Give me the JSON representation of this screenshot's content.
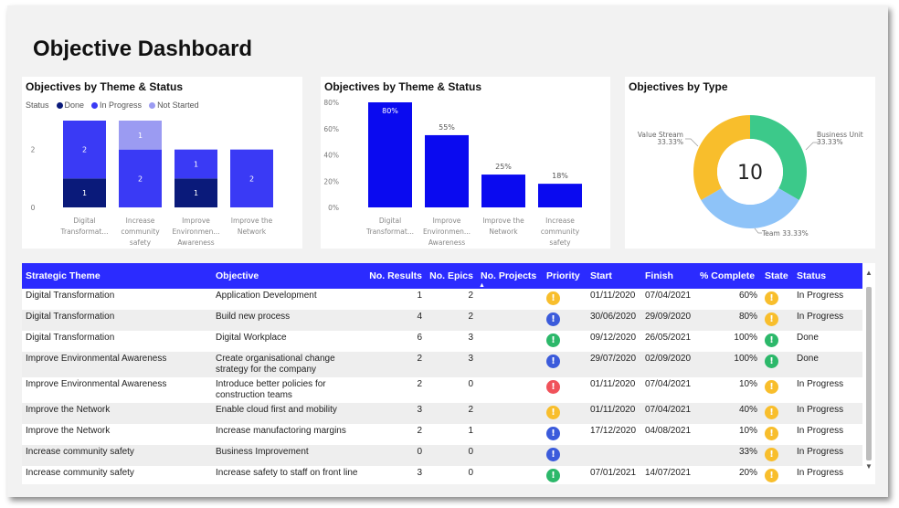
{
  "page_title": "Objective Dashboard",
  "charts": {
    "stacked": {
      "title": "Objectives by Theme & Status"
    },
    "percent": {
      "title": "Objectives by Theme & Status"
    },
    "donut": {
      "title": "Objectives by Type"
    }
  },
  "legend": {
    "label": "Status",
    "items": [
      {
        "name": "Done",
        "color": "#0a1a7a"
      },
      {
        "name": "In Progress",
        "color": "#3a3af5"
      },
      {
        "name": "Not Started",
        "color": "#9b9bf2"
      }
    ]
  },
  "chart_data": [
    {
      "type": "bar",
      "stacked": true,
      "title": "Objectives by Theme & Status",
      "legend_title": "Status",
      "categories": [
        "Digital Transformat...",
        "Increase community safety",
        "Improve Environmen... Awareness",
        "Improve the Network"
      ],
      "series": [
        {
          "name": "Done",
          "values": [
            1,
            0,
            1,
            0
          ],
          "color": "#0a1a7a"
        },
        {
          "name": "In Progress",
          "values": [
            2,
            2,
            1,
            2
          ],
          "color": "#3a3af5"
        },
        {
          "name": "Not Started",
          "values": [
            0,
            1,
            0,
            0
          ],
          "color": "#9b9bf2"
        }
      ],
      "yticks": [
        "0",
        "2"
      ],
      "ylim": [
        0,
        3
      ]
    },
    {
      "type": "bar",
      "title": "Objectives by Theme & Status",
      "categories": [
        "Digital Transformat...",
        "Improve Environmen... Awareness",
        "Improve the Network",
        "Increase community safety"
      ],
      "values": [
        80,
        55,
        25,
        18
      ],
      "labels": [
        "80%",
        "55%",
        "25%",
        "18%"
      ],
      "yticks": [
        "0%",
        "20%",
        "40%",
        "60%",
        "80%"
      ],
      "ylim": [
        0,
        80
      ],
      "color": "#0a0af0"
    },
    {
      "type": "pie",
      "donut": true,
      "title": "Objectives by Type",
      "center_value": "10",
      "slices": [
        {
          "name": "Business Unit",
          "value": 33.33,
          "label": "33.33%",
          "color": "#3cc98a"
        },
        {
          "name": "Team",
          "value": 33.33,
          "label": "Team 33.33%",
          "color": "#8ec3f8"
        },
        {
          "name": "Value Stream",
          "value": 33.33,
          "label": "33.33%",
          "color": "#f8be2c"
        }
      ]
    }
  ],
  "table": {
    "columns": [
      "Strategic Theme",
      "Objective",
      "No. Results",
      "No. Epics",
      "No. Projects",
      "Priority",
      "Start",
      "Finish",
      "% Complete",
      "State",
      "Status"
    ],
    "rows": [
      {
        "theme": "Digital Transformation",
        "objective": "Application Development",
        "results": "1",
        "epics": "2",
        "projects": "",
        "priority": "yellow",
        "start": "01/11/2020",
        "finish": "07/04/2021",
        "complete": "60%",
        "state": "yellow",
        "status": "In Progress"
      },
      {
        "theme": "Digital Transformation",
        "objective": "Build new process",
        "results": "4",
        "epics": "2",
        "projects": "",
        "priority": "blue",
        "start": "30/06/2020",
        "finish": "29/09/2020",
        "complete": "80%",
        "state": "yellow",
        "status": "In Progress"
      },
      {
        "theme": "Digital Transformation",
        "objective": "Digital Workplace",
        "results": "6",
        "epics": "3",
        "projects": "",
        "priority": "green",
        "start": "09/12/2020",
        "finish": "26/05/2021",
        "complete": "100%",
        "state": "green",
        "status": "Done"
      },
      {
        "theme": "Improve Environmental Awareness",
        "objective": "Create organisational change strategy for the company",
        "results": "2",
        "epics": "3",
        "projects": "",
        "priority": "blue",
        "start": "29/07/2020",
        "finish": "02/09/2020",
        "complete": "100%",
        "state": "green",
        "status": "Done"
      },
      {
        "theme": "Improve Environmental Awareness",
        "objective": "Introduce better policies for construction teams",
        "results": "2",
        "epics": "0",
        "projects": "",
        "priority": "red",
        "start": "01/11/2020",
        "finish": "07/04/2021",
        "complete": "10%",
        "state": "yellow",
        "status": "In Progress"
      },
      {
        "theme": "Improve the Network",
        "objective": "Enable cloud first and mobility",
        "results": "3",
        "epics": "2",
        "projects": "",
        "priority": "yellow",
        "start": "01/11/2020",
        "finish": "07/04/2021",
        "complete": "40%",
        "state": "yellow",
        "status": "In Progress"
      },
      {
        "theme": "Improve the Network",
        "objective": "Increase manufactoring margins",
        "results": "2",
        "epics": "1",
        "projects": "",
        "priority": "blue",
        "start": "17/12/2020",
        "finish": "04/08/2021",
        "complete": "10%",
        "state": "yellow",
        "status": "In Progress"
      },
      {
        "theme": "Increase community safety",
        "objective": "Business Improvement",
        "results": "0",
        "epics": "0",
        "projects": "",
        "priority": "blue",
        "start": "",
        "finish": "",
        "complete": "33%",
        "state": "yellow",
        "status": "In Progress"
      },
      {
        "theme": "Increase community safety",
        "objective": "Increase safety to staff on front line",
        "results": "3",
        "epics": "0",
        "projects": "",
        "priority": "green",
        "start": "07/01/2021",
        "finish": "14/07/2021",
        "complete": "20%",
        "state": "yellow",
        "status": "In Progress"
      }
    ]
  },
  "colors": {
    "yellow": "#f8be2c",
    "blue": "#3b5bdb",
    "green": "#2cb86a",
    "red": "#f0525a",
    "header": "#2b2bff"
  },
  "icon_glyph": "!",
  "scroll": {
    "up": "▲",
    "down": "▼"
  }
}
